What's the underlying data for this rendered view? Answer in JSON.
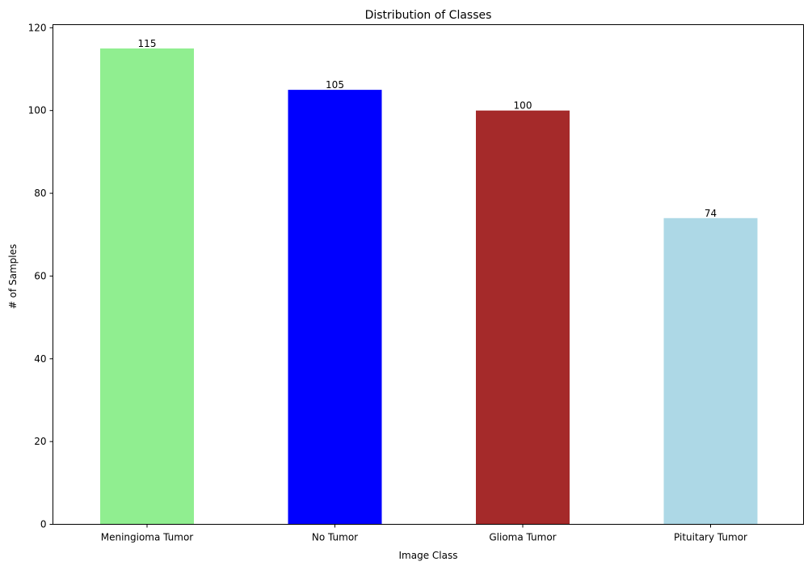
{
  "chart_data": {
    "type": "bar",
    "title": "Distribution of Classes",
    "xlabel": "Image Class",
    "ylabel": "# of Samples",
    "categories": [
      "Meningioma Tumor",
      "No Tumor",
      "Glioma Tumor",
      "Pituitary Tumor"
    ],
    "values": [
      115,
      105,
      100,
      74
    ],
    "data_labels": [
      "115",
      "105",
      "100",
      "74"
    ],
    "colors": [
      "#90ee90",
      "#0000ff",
      "#a52a2a",
      "#add8e6"
    ],
    "ylim": [
      0,
      120.75
    ],
    "yticks": [
      0,
      20,
      40,
      60,
      80,
      100,
      120
    ],
    "ytick_labels": [
      "0",
      "20",
      "40",
      "60",
      "80",
      "100",
      "120"
    ],
    "grid": false,
    "legend": false
  }
}
